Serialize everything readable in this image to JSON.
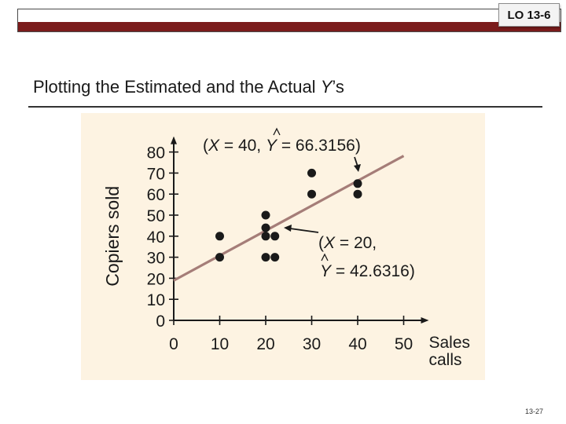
{
  "header": {
    "badge": "LO 13-6"
  },
  "slide": {
    "title_prefix": "Plotting the Estimated and the Actual ",
    "title_var": "Y",
    "title_suffix": "’s",
    "number": "13-27"
  },
  "colors": {
    "band": "#7b1c1c",
    "panel": "#fdf3e2",
    "line": "#a57d78",
    "points": "#1a1a1a"
  },
  "chart_data": {
    "type": "scatter",
    "xlabel": "Sales calls",
    "ylabel": "Copiers sold",
    "xlim": [
      0,
      50
    ],
    "ylim": [
      0,
      80
    ],
    "x_ticks": [
      0,
      10,
      20,
      30,
      40,
      50
    ],
    "y_ticks": [
      0,
      10,
      20,
      30,
      40,
      50,
      60,
      70,
      80
    ],
    "points": [
      {
        "x": 10,
        "y": 40
      },
      {
        "x": 10,
        "y": 30
      },
      {
        "x": 20,
        "y": 50
      },
      {
        "x": 20,
        "y": 44
      },
      {
        "x": 20,
        "y": 40
      },
      {
        "x": 22,
        "y": 40
      },
      {
        "x": 20,
        "y": 30
      },
      {
        "x": 22,
        "y": 30
      },
      {
        "x": 30,
        "y": 70
      },
      {
        "x": 30,
        "y": 60
      },
      {
        "x": 40,
        "y": 65
      },
      {
        "x": 40,
        "y": 60
      }
    ],
    "regression_line": {
      "intercept": 18.9476,
      "slope": 1.1842,
      "x_range": [
        0,
        50
      ]
    },
    "annotations": [
      {
        "text": "(X = 40, Ŷ = 66.3156)",
        "x": 40,
        "y": 66.3156
      },
      {
        "text_line1": "(X = 20,",
        "text_line2": "Ŷ = 42.6316)",
        "x": 20,
        "y": 42.6316
      }
    ]
  }
}
